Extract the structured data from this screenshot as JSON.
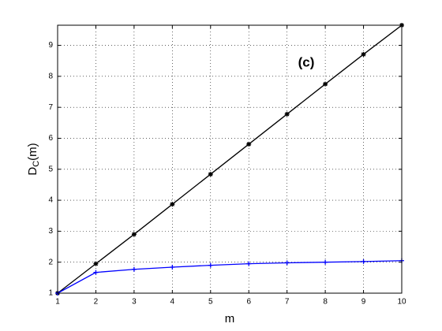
{
  "chart_data": {
    "type": "line",
    "xlabel": "m",
    "ylabel": {
      "main": "D",
      "sub": "C",
      "tail": "(m)"
    },
    "annotation": "(c)",
    "x": [
      1,
      2,
      3,
      4,
      5,
      6,
      7,
      8,
      9,
      10
    ],
    "series": [
      {
        "color": "#000000",
        "marker": "star",
        "values": [
          1,
          1.95,
          2.9,
          3.87,
          4.84,
          5.81,
          6.78,
          7.75,
          8.71,
          9.65
        ]
      },
      {
        "color": "#0000ff",
        "marker": "plus",
        "values": [
          1,
          1.67,
          1.77,
          1.84,
          1.9,
          1.95,
          1.98,
          2.0,
          2.02,
          2.05
        ]
      }
    ],
    "xlim": [
      1,
      10
    ],
    "ylim": [
      1,
      9.65
    ],
    "xticks": [
      1,
      2,
      3,
      4,
      5,
      6,
      7,
      8,
      9,
      10
    ],
    "yticks": [
      1,
      2,
      3,
      4,
      5,
      6,
      7,
      8,
      9
    ],
    "grid": true
  }
}
